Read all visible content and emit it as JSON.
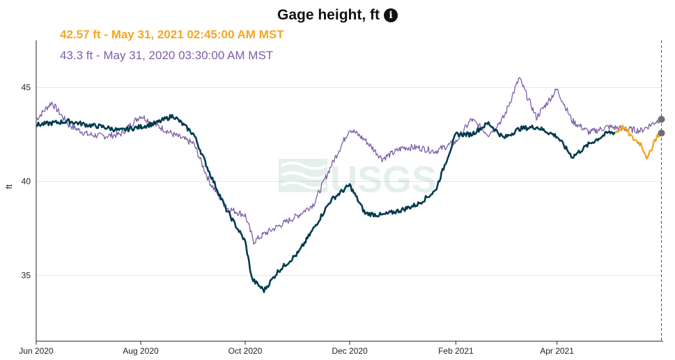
{
  "header": {
    "title": "Gage height, ft",
    "info_icon": "info-icon"
  },
  "legend": {
    "current_label": "42.57 ft - May 31, 2021 02:45:00 AM MST",
    "prior_label": "43.3 ft - May 31, 2020 03:30:00 AM MST"
  },
  "colors": {
    "current": "#f5a623",
    "current_main": "#003b4f",
    "prior": "#7b5ea7",
    "grid": "#e6e6e6",
    "axis": "#222222"
  },
  "chart_data": {
    "type": "line",
    "title": "Gage height, ft",
    "xlabel": "",
    "ylabel": "ft",
    "ylim": [
      31.5,
      47.5
    ],
    "xlim": [
      "2020-06-01",
      "2021-06-02"
    ],
    "y_ticks": [
      35,
      40,
      45
    ],
    "x_ticks": [
      {
        "label": "Jun 2020",
        "date": "2020-06-01"
      },
      {
        "label": "Aug 2020",
        "date": "2020-08-01"
      },
      {
        "label": "Oct 2020",
        "date": "2020-10-01"
      },
      {
        "label": "Dec 2020",
        "date": "2020-12-01"
      },
      {
        "label": "Feb 2021",
        "date": "2021-02-01"
      },
      {
        "label": "Apr 2021",
        "date": "2021-04-01"
      }
    ],
    "grid": true,
    "current_time_marker": "2021-06-01",
    "series": [
      {
        "role": "current",
        "x": [
          "2020-06-01",
          "2020-06-10",
          "2020-06-20",
          "2020-07-01",
          "2020-07-10",
          "2020-07-20",
          "2020-08-01",
          "2020-08-10",
          "2020-08-20",
          "2020-09-01",
          "2020-09-10",
          "2020-09-20",
          "2020-10-01",
          "2020-10-05",
          "2020-10-12",
          "2020-10-20",
          "2020-11-01",
          "2020-11-10",
          "2020-11-20",
          "2020-12-01",
          "2020-12-10",
          "2020-12-20",
          "2021-01-01",
          "2021-01-10",
          "2021-01-20",
          "2021-02-01",
          "2021-02-10",
          "2021-02-20",
          "2021-03-01",
          "2021-03-10",
          "2021-03-20",
          "2021-04-01",
          "2021-04-10",
          "2021-04-20",
          "2021-05-01",
          "2021-05-05"
        ],
        "y": [
          43.0,
          43.1,
          43.2,
          43.0,
          42.9,
          42.7,
          42.9,
          43.1,
          43.5,
          42.5,
          40.5,
          38.5,
          36.8,
          34.8,
          34.2,
          35.2,
          36.2,
          37.5,
          39.0,
          39.8,
          38.3,
          38.2,
          38.5,
          38.8,
          39.5,
          42.5,
          42.5,
          43.1,
          42.3,
          42.8,
          42.9,
          42.4,
          41.3,
          42.0,
          42.6,
          42.6
        ]
      },
      {
        "role": "current-recent",
        "x": [
          "2021-05-05",
          "2021-05-10",
          "2021-05-15",
          "2021-05-20",
          "2021-05-24",
          "2021-05-28",
          "2021-05-31"
        ],
        "y": [
          42.6,
          42.9,
          42.3,
          42.0,
          41.2,
          42.2,
          42.57
        ]
      },
      {
        "role": "prior",
        "x": [
          "2020-06-01",
          "2020-06-10",
          "2020-06-20",
          "2020-07-01",
          "2020-07-10",
          "2020-07-20",
          "2020-08-01",
          "2020-08-10",
          "2020-08-20",
          "2020-09-01",
          "2020-09-10",
          "2020-09-20",
          "2020-10-01",
          "2020-10-06",
          "2020-10-12",
          "2020-10-20",
          "2020-11-01",
          "2020-11-10",
          "2020-11-20",
          "2020-12-01",
          "2020-12-10",
          "2020-12-20",
          "2021-01-01",
          "2021-01-10",
          "2021-01-20",
          "2021-02-01",
          "2021-02-10",
          "2021-02-20",
          "2021-03-01",
          "2021-03-10",
          "2021-03-20",
          "2021-04-01",
          "2021-04-10",
          "2021-04-20",
          "2021-05-01",
          "2021-05-10",
          "2021-05-20",
          "2021-05-31"
        ],
        "y": [
          43.3,
          44.2,
          43.0,
          42.5,
          42.4,
          42.5,
          43.5,
          43.0,
          42.5,
          42.0,
          40.0,
          38.6,
          38.2,
          36.8,
          37.2,
          37.6,
          38.2,
          38.8,
          40.8,
          42.8,
          42.2,
          41.2,
          41.8,
          41.8,
          41.6,
          42.1,
          43.3,
          42.5,
          43.4,
          45.5,
          43.4,
          44.9,
          43.2,
          42.6,
          42.9,
          42.8,
          42.7,
          43.3
        ]
      }
    ]
  }
}
